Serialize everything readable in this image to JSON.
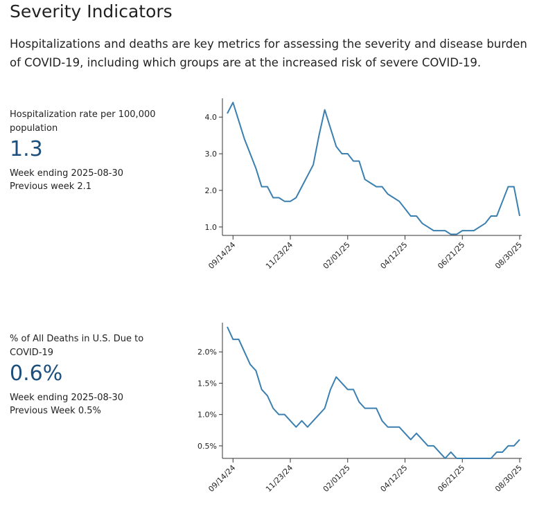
{
  "header": {
    "title": "Severity Indicators",
    "description": "Hospitalizations and deaths are key metrics for assessing the severity and disease burden of COVID-19, including which groups are at the increased risk of severe COVID-19."
  },
  "chart_data": [
    {
      "type": "line",
      "label": "Hospitalization rate per 100,000 population",
      "value": "1.3",
      "week_ending": "Week ending 2025-08-30",
      "previous": "Previous week 2.1",
      "color": "#3a7fb0",
      "x": [
        "09/07/24",
        "09/14/24",
        "09/21/24",
        "09/28/24",
        "10/05/24",
        "10/12/24",
        "10/19/24",
        "10/26/24",
        "11/02/24",
        "11/09/24",
        "11/16/24",
        "11/23/24",
        "11/30/24",
        "12/07/24",
        "12/14/24",
        "12/21/24",
        "12/28/24",
        "01/04/25",
        "01/11/25",
        "01/18/25",
        "01/25/25",
        "02/01/25",
        "02/08/25",
        "02/15/25",
        "02/22/25",
        "03/01/25",
        "03/08/25",
        "03/15/25",
        "03/22/25",
        "03/29/25",
        "04/05/25",
        "04/12/25",
        "04/19/25",
        "04/26/25",
        "05/03/25",
        "05/10/25",
        "05/17/25",
        "05/24/25",
        "05/31/25",
        "06/07/25",
        "06/14/25",
        "06/21/25",
        "06/28/25",
        "07/05/25",
        "07/12/25",
        "07/19/25",
        "07/26/25",
        "08/02/25",
        "08/09/25",
        "08/16/25",
        "08/23/25",
        "08/30/25"
      ],
      "values": [
        4.1,
        4.4,
        3.9,
        3.4,
        3.0,
        2.6,
        2.1,
        2.1,
        1.8,
        1.8,
        1.7,
        1.7,
        1.8,
        2.1,
        2.4,
        2.7,
        3.5,
        4.2,
        3.7,
        3.2,
        3.0,
        3.0,
        2.8,
        2.8,
        2.3,
        2.2,
        2.1,
        2.1,
        1.9,
        1.8,
        1.7,
        1.5,
        1.3,
        1.3,
        1.1,
        1.0,
        0.9,
        0.9,
        0.9,
        0.8,
        0.8,
        0.9,
        0.9,
        0.9,
        1.0,
        1.1,
        1.3,
        1.3,
        1.7,
        2.1,
        2.1,
        1.3
      ],
      "xticks": [
        "09/14/24",
        "11/23/24",
        "02/01/25",
        "04/12/25",
        "06/21/25",
        "08/30/25"
      ],
      "ylim": [
        0.77,
        4.4
      ],
      "yticks": [
        {
          "value": 1,
          "label": "1.0"
        },
        {
          "value": 2,
          "label": "2.0"
        },
        {
          "value": 3,
          "label": "3.0"
        },
        {
          "value": 4,
          "label": "4.0"
        }
      ]
    },
    {
      "type": "line",
      "label": "% of All Deaths in U.S. Due to COVID-19",
      "value": "0.6%",
      "week_ending": "Week ending 2025-08-30",
      "previous": "Previous Week 0.5%",
      "color": "#3a7fb0",
      "x": [
        "09/07/24",
        "09/14/24",
        "09/21/24",
        "09/28/24",
        "10/05/24",
        "10/12/24",
        "10/19/24",
        "10/26/24",
        "11/02/24",
        "11/09/24",
        "11/16/24",
        "11/23/24",
        "11/30/24",
        "12/07/24",
        "12/14/24",
        "12/21/24",
        "12/28/24",
        "01/04/25",
        "01/11/25",
        "01/18/25",
        "01/25/25",
        "02/01/25",
        "02/08/25",
        "02/15/25",
        "02/22/25",
        "03/01/25",
        "03/08/25",
        "03/15/25",
        "03/22/25",
        "03/29/25",
        "04/05/25",
        "04/12/25",
        "04/19/25",
        "04/26/25",
        "05/03/25",
        "05/10/25",
        "05/17/25",
        "05/24/25",
        "05/31/25",
        "06/07/25",
        "06/14/25",
        "06/21/25",
        "06/28/25",
        "07/05/25",
        "07/12/25",
        "07/19/25",
        "07/26/25",
        "08/02/25",
        "08/09/25",
        "08/16/25",
        "08/23/25",
        "08/30/25"
      ],
      "values": [
        2.4,
        2.2,
        2.2,
        2.0,
        1.8,
        1.7,
        1.4,
        1.3,
        1.1,
        1.0,
        1.0,
        0.9,
        0.8,
        0.9,
        0.8,
        0.9,
        1.0,
        1.1,
        1.4,
        1.6,
        1.5,
        1.4,
        1.4,
        1.2,
        1.1,
        1.1,
        1.1,
        0.9,
        0.8,
        0.8,
        0.8,
        0.7,
        0.6,
        0.7,
        0.6,
        0.5,
        0.5,
        0.4,
        0.3,
        0.4,
        0.3,
        0.3,
        0.3,
        0.3,
        0.3,
        0.3,
        0.3,
        0.4,
        0.4,
        0.5,
        0.5,
        0.6
      ],
      "xticks": [
        "09/14/24",
        "11/23/24",
        "02/01/25",
        "04/12/25",
        "06/21/25",
        "08/30/25"
      ],
      "ylim": [
        0.3,
        2.4
      ],
      "yticks": [
        {
          "value": 0.5,
          "label": "0.5%"
        },
        {
          "value": 1,
          "label": "1.0%"
        },
        {
          "value": 1.5,
          "label": "1.5%"
        },
        {
          "value": 2,
          "label": "2.0%"
        }
      ]
    }
  ]
}
